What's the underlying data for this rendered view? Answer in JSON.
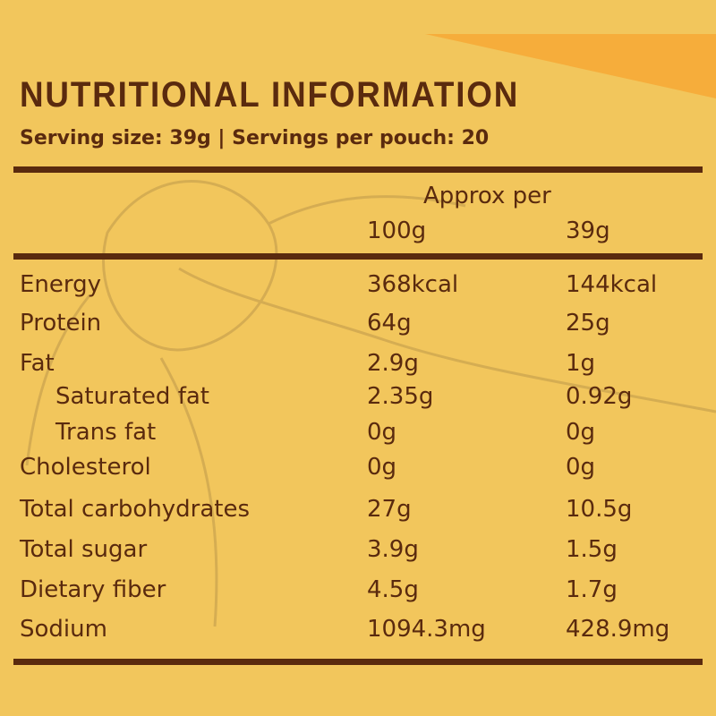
{
  "header": {
    "title": "NUTRITIONAL INFORMATION",
    "subtitle": "Serving size: 39g | Servings per pouch: 20"
  },
  "table": {
    "group_header": "Approx per",
    "columns": [
      "100g",
      "39g"
    ],
    "rows": [
      {
        "cells": [
          "Energy",
          "368kcal",
          "144kcal"
        ]
      },
      {
        "cells": [
          "Protein",
          "64g",
          "25g"
        ]
      },
      {
        "cells": [
          "Fat",
          "2.9g",
          "1g"
        ]
      },
      {
        "cells": [
          "Saturated fat",
          "2.35g",
          "0.92g"
        ],
        "indent": true
      },
      {
        "cells": [
          "Trans fat",
          "0g",
          "0g"
        ],
        "indent": true
      },
      {
        "cells": [
          "Cholesterol",
          "0g",
          "0g"
        ]
      },
      {
        "cells": [
          "Total carbohydrates",
          "27g",
          "10.5g"
        ]
      },
      {
        "cells": [
          "Total sugar",
          "3.9g",
          "1.5g"
        ]
      },
      {
        "cells": [
          "Dietary fiber",
          "4.5g",
          "1.7g"
        ]
      },
      {
        "cells": [
          "Sodium",
          "1094.3mg",
          "428.9mg"
        ]
      }
    ]
  }
}
